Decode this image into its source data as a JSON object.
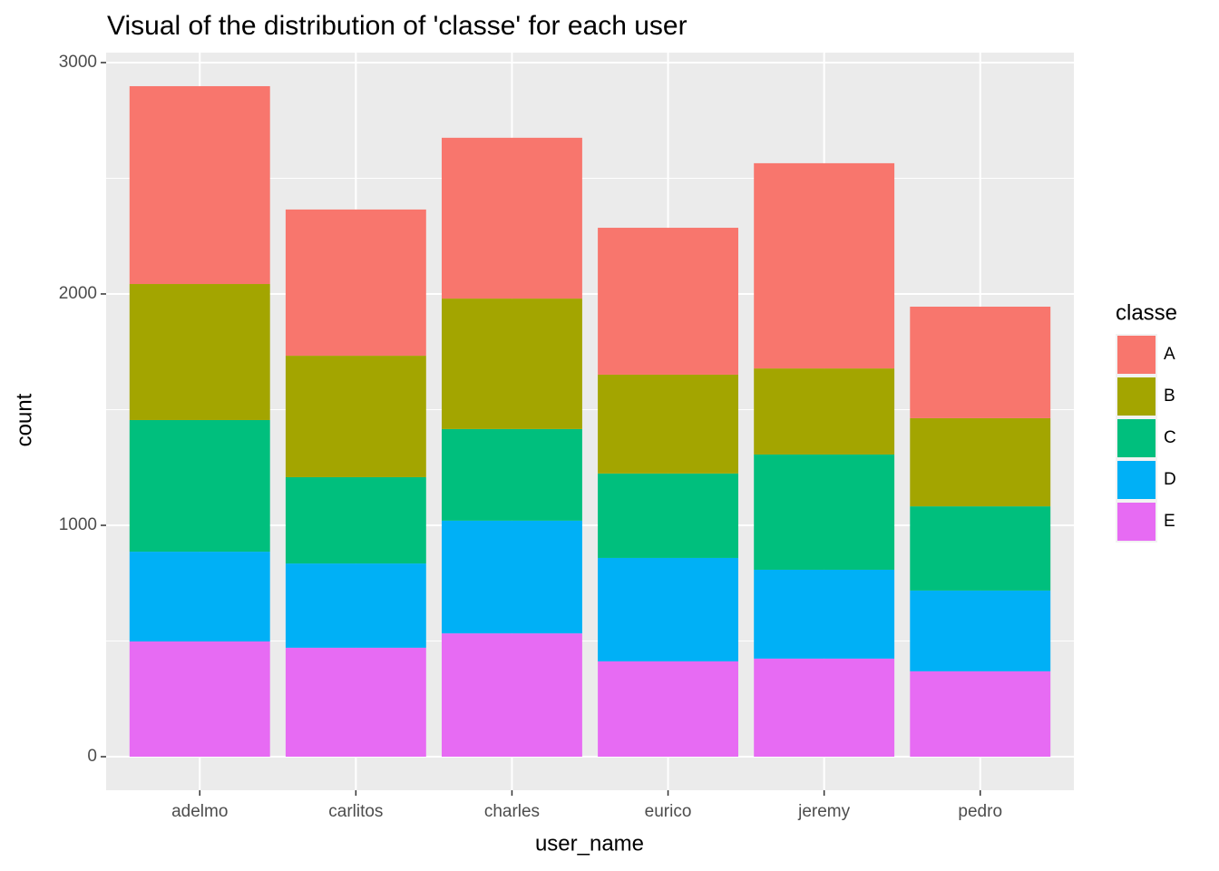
{
  "chart_data": {
    "type": "stacked_bar",
    "title": "Visual of the distribution of 'classe' for each user",
    "x_label": "user_name",
    "y_label": "count",
    "categories": [
      "adelmo",
      "carlitos",
      "charles",
      "eurico",
      "jeremy",
      "pedro"
    ],
    "series": [
      {
        "name": "A",
        "color": "#F8766D",
        "values": [
          855,
          632,
          695,
          635,
          887,
          482
        ]
      },
      {
        "name": "B",
        "color": "#A3A500",
        "values": [
          588,
          525,
          564,
          427,
          372,
          381
        ]
      },
      {
        "name": "C",
        "color": "#00BF7D",
        "values": [
          569,
          373,
          396,
          365,
          498,
          364
        ]
      },
      {
        "name": "D",
        "color": "#00B0F6",
        "values": [
          388,
          364,
          487,
          447,
          384,
          349
        ]
      },
      {
        "name": "E",
        "color": "#E76BF3",
        "values": [
          498,
          471,
          533,
          412,
          424,
          369
        ]
      }
    ],
    "legend_title": "classe",
    "legend_position": "right",
    "ylim": [
      -145,
      3043
    ],
    "yticks": [
      0,
      1000,
      2000,
      3000
    ],
    "grid": true
  }
}
